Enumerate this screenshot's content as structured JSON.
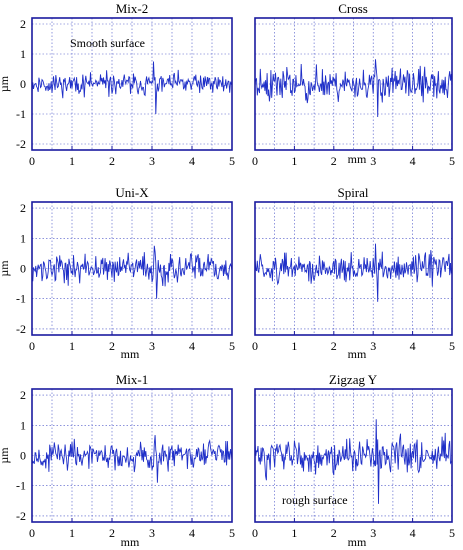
{
  "chart_data": [
    {
      "type": "line",
      "title": "Mix-2",
      "xlabel": "",
      "ylabel": "µm",
      "xlim": [
        0,
        5
      ],
      "ylim": [
        -2.2,
        2.2
      ],
      "xticks": [
        "0",
        "1",
        "2",
        "3",
        "4",
        "5"
      ],
      "yticks": [
        "2",
        "1",
        "0",
        "-1",
        "-2"
      ],
      "grid": true,
      "annotation": "Smooth  surface",
      "line_color": "#1f2fc8",
      "noise": {
        "amplitude": 0.22,
        "points": 260,
        "seed": 11,
        "spike_min": -1.0
      }
    },
    {
      "type": "line",
      "title": "Cross",
      "xlabel": "mm",
      "ylabel": "",
      "xlim": [
        0,
        5
      ],
      "ylim": [
        -2.2,
        2.2
      ],
      "xticks": [
        "0",
        "1",
        "2",
        "3",
        "4",
        "5"
      ],
      "yticks": [],
      "grid": true,
      "annotation": "",
      "line_color": "#1f2fc8",
      "noise": {
        "amplitude": 0.34,
        "points": 260,
        "seed": 23,
        "spike_min": -1.1
      }
    },
    {
      "type": "line",
      "title": "Uni-X",
      "xlabel": "mm",
      "ylabel": "µm",
      "xlim": [
        0,
        5
      ],
      "ylim": [
        -2.2,
        2.2
      ],
      "xticks": [
        "0",
        "1",
        "2",
        "3",
        "4",
        "5"
      ],
      "yticks": [
        "2",
        "1",
        "0",
        "-1",
        "-2"
      ],
      "grid": true,
      "annotation": "",
      "line_color": "#1f2fc8",
      "noise": {
        "amplitude": 0.3,
        "points": 260,
        "seed": 37,
        "spike_min": -1.0
      }
    },
    {
      "type": "line",
      "title": "Spiral",
      "xlabel": "mm",
      "ylabel": "",
      "xlim": [
        0,
        5
      ],
      "ylim": [
        -2.2,
        2.2
      ],
      "xticks": [
        "0",
        "1",
        "2",
        "3",
        "4",
        "5"
      ],
      "yticks": [],
      "grid": true,
      "annotation": "",
      "line_color": "#1f2fc8",
      "noise": {
        "amplitude": 0.3,
        "points": 260,
        "seed": 51,
        "spike_min": -1.1
      }
    },
    {
      "type": "line",
      "title": "Mix-1",
      "xlabel": "mm",
      "ylabel": "µm",
      "xlim": [
        0,
        5
      ],
      "ylim": [
        -2.2,
        2.2
      ],
      "xticks": [
        "0",
        "1",
        "2",
        "3",
        "4",
        "5"
      ],
      "yticks": [
        "2",
        "1",
        "0",
        "-1",
        "-2"
      ],
      "grid": true,
      "annotation": "",
      "line_color": "#1f2fc8",
      "noise": {
        "amplitude": 0.28,
        "points": 260,
        "seed": 67,
        "spike_min": -0.9
      }
    },
    {
      "type": "line",
      "title": "Zigzag  Y",
      "xlabel": "mm",
      "ylabel": "",
      "xlim": [
        0,
        5
      ],
      "ylim": [
        -2.2,
        2.2
      ],
      "xticks": [
        "0",
        "1",
        "2",
        "3",
        "4",
        "5"
      ],
      "yticks": [],
      "grid": true,
      "annotation": "rough surface",
      "line_color": "#1f2fc8",
      "noise": {
        "amplitude": 0.36,
        "points": 260,
        "seed": 83,
        "spike_min": -1.6
      }
    }
  ]
}
